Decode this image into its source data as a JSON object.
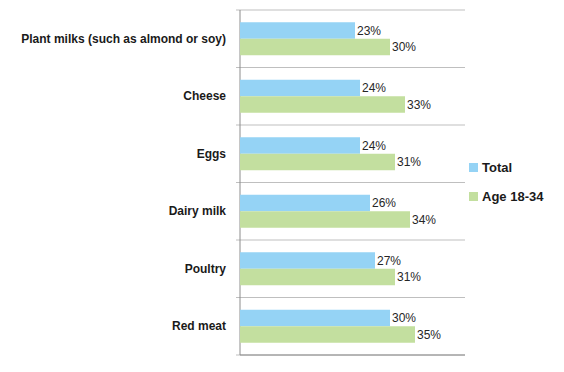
{
  "chart_data": {
    "type": "bar",
    "orientation": "horizontal",
    "categories": [
      "Plant milks (such as almond or soy)",
      "Cheese",
      "Eggs",
      "Dairy milk",
      "Poultry",
      "Red meat"
    ],
    "series": [
      {
        "name": "Total",
        "color": "#95d3f5",
        "values": [
          23,
          24,
          24,
          26,
          27,
          30
        ],
        "value_labels": [
          "23%",
          "24%",
          "24%",
          "26%",
          "27%",
          "30%"
        ]
      },
      {
        "name": "Age 18-34",
        "color": "#c3df9f",
        "values": [
          30,
          33,
          31,
          34,
          31,
          35
        ],
        "value_labels": [
          "30%",
          "33%",
          "31%",
          "34%",
          "31%",
          "35%"
        ]
      }
    ],
    "xlim": [
      0,
      45
    ],
    "data_labels": true,
    "tick_labels": false,
    "legend": "right"
  }
}
